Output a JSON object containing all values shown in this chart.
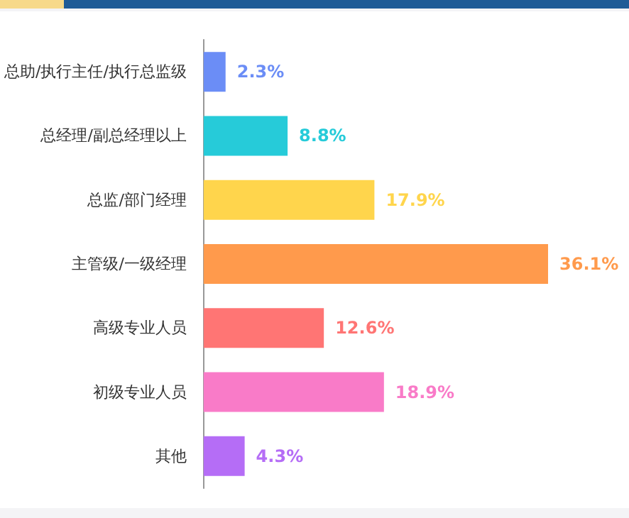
{
  "chart_data": {
    "type": "bar",
    "orientation": "horizontal",
    "categories": [
      "总助/执行主任/执行总监级",
      "总经理/副总经理以上",
      "总监/部门经理",
      "主管级/一级经理",
      "高级专业人员",
      "初级专业人员",
      "其他"
    ],
    "values": [
      2.3,
      8.8,
      17.9,
      36.1,
      12.6,
      18.9,
      4.3
    ],
    "value_labels": [
      "2.3%",
      "8.8%",
      "17.9%",
      "36.1%",
      "12.6%",
      "18.9%",
      "4.3%"
    ],
    "colors": [
      "#6b8df6",
      "#26cbd9",
      "#ffd54c",
      "#ff9a4c",
      "#ff7574",
      "#f97bc8",
      "#b56df6"
    ]
  }
}
